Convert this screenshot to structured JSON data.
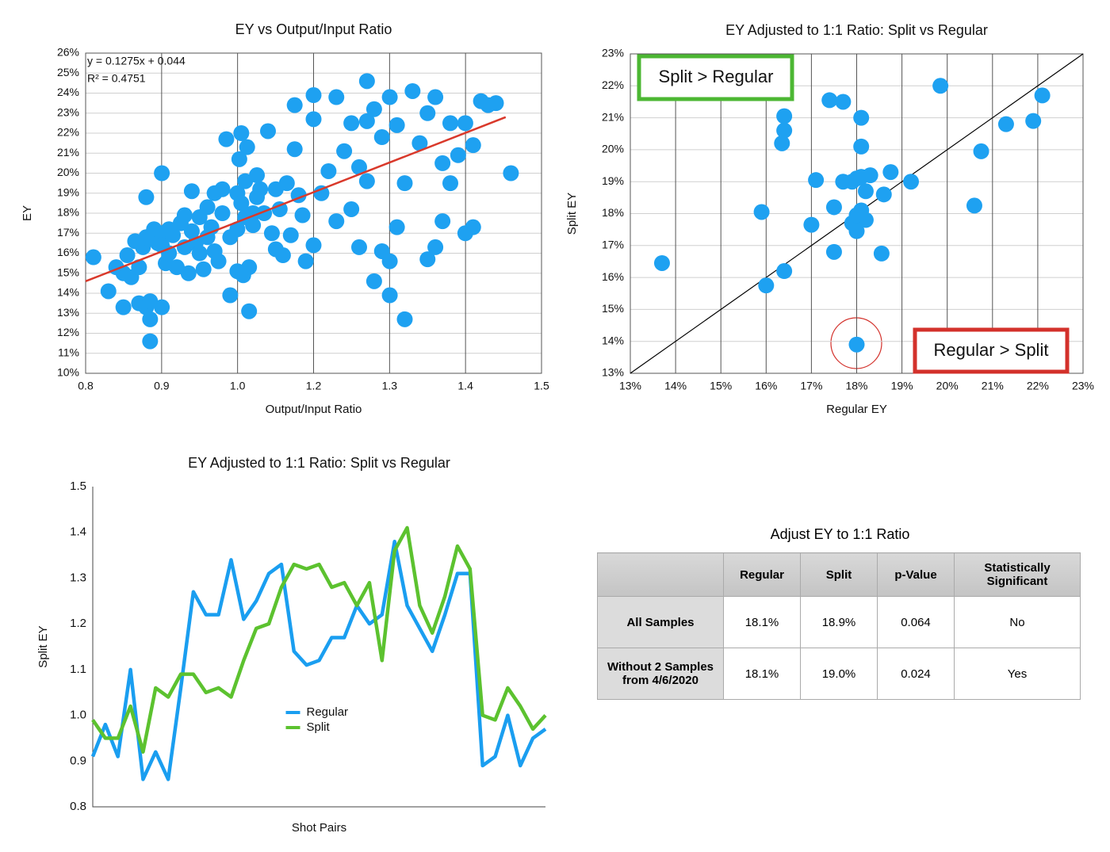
{
  "chart_data": [
    {
      "type": "scatter",
      "title": "EY vs Output/Input Ratio",
      "x_label": "Output/Input Ratio",
      "y_label": "EY",
      "xlim": [
        0.8,
        1.5
      ],
      "xticks": [
        0.8,
        {
          "value": 0.9167,
          "label": "0.9"
        },
        {
          "value": 1.0333,
          "label": "1.0"
        },
        {
          "value": 1.15,
          "label": "1.2"
        },
        {
          "value": 1.2667,
          "label": "1.3"
        },
        {
          "value": 1.3833,
          "label": "1.4"
        },
        1.5
      ],
      "ylim": [
        10,
        26
      ],
      "yticks": [
        {
          "value": 10,
          "label": "10%"
        },
        {
          "value": 11,
          "label": "11%"
        },
        {
          "value": 12,
          "label": "12%"
        },
        {
          "value": 13,
          "label": "13%"
        },
        {
          "value": 14,
          "label": "14%"
        },
        {
          "value": 15,
          "label": "15%"
        },
        {
          "value": 16,
          "label": "16%"
        },
        {
          "value": 17,
          "label": "17%"
        },
        {
          "value": 18,
          "label": "18%"
        },
        {
          "value": 19,
          "label": "19%"
        },
        {
          "value": 20,
          "label": "20%"
        },
        {
          "value": 21,
          "label": "21%"
        },
        {
          "value": 22,
          "label": "22%"
        },
        {
          "value": 23,
          "label": "23%"
        },
        {
          "value": 24,
          "label": "24%"
        },
        {
          "value": 25,
          "label": "25%"
        },
        {
          "value": 26,
          "label": "26%"
        }
      ],
      "grid": true,
      "color": "#1ea1f1",
      "x": [
        0.812,
        0.835,
        0.847,
        0.858,
        0.858,
        0.864,
        0.87,
        0.876,
        0.882,
        0.882,
        0.888,
        0.893,
        0.893,
        0.893,
        0.899,
        0.899,
        0.899,
        0.905,
        0.911,
        0.917,
        0.917,
        0.917,
        0.917,
        0.923,
        0.928,
        0.928,
        0.934,
        0.94,
        0.946,
        0.952,
        0.952,
        0.958,
        0.963,
        0.963,
        0.969,
        0.975,
        0.975,
        0.981,
        0.987,
        0.987,
        0.993,
        0.998,
        0.998,
        1.004,
        1.01,
        1.01,
        1.016,
        1.022,
        1.022,
        1.033,
        1.033,
        1.033,
        1.036,
        1.039,
        1.039,
        1.042,
        1.045,
        1.045,
        1.048,
        1.051,
        1.051,
        1.057,
        1.057,
        1.063,
        1.063,
        1.068,
        1.074,
        1.08,
        1.086,
        1.092,
        1.092,
        1.098,
        1.103,
        1.109,
        1.115,
        1.121,
        1.121,
        1.127,
        1.133,
        1.138,
        1.15,
        1.15,
        1.15,
        1.162,
        1.173,
        1.185,
        1.185,
        1.197,
        1.208,
        1.208,
        1.22,
        1.22,
        1.232,
        1.232,
        1.232,
        1.243,
        1.243,
        1.255,
        1.255,
        1.267,
        1.267,
        1.267,
        1.278,
        1.278,
        1.29,
        1.29,
        1.302,
        1.313,
        1.325,
        1.325,
        1.337,
        1.337,
        1.348,
        1.348,
        1.36,
        1.36,
        1.372,
        1.383,
        1.383,
        1.395,
        1.395,
        1.407,
        1.418,
        1.43,
        1.453
      ],
      "values": [
        15.8,
        14.1,
        15.3,
        15.0,
        13.3,
        15.9,
        14.8,
        16.6,
        15.3,
        13.5,
        16.3,
        16.8,
        13.3,
        18.8,
        12.7,
        11.6,
        13.6,
        17.2,
        16.5,
        17.0,
        16.4,
        13.3,
        20.0,
        15.5,
        17.2,
        16.0,
        16.9,
        15.3,
        17.5,
        17.9,
        16.3,
        15.0,
        17.1,
        19.1,
        16.5,
        16.0,
        17.8,
        15.2,
        18.3,
        16.8,
        17.3,
        19.0,
        16.1,
        15.6,
        19.2,
        18.0,
        21.7,
        13.9,
        16.8,
        17.2,
        15.1,
        19.0,
        20.7,
        22.0,
        18.5,
        14.9,
        17.8,
        19.6,
        21.3,
        15.3,
        13.1,
        18.0,
        17.4,
        19.9,
        18.8,
        19.2,
        18.0,
        22.1,
        17.0,
        16.2,
        19.2,
        18.2,
        15.9,
        19.5,
        16.9,
        21.2,
        23.4,
        18.9,
        17.9,
        15.6,
        16.4,
        22.7,
        23.9,
        19.0,
        20.1,
        17.6,
        23.8,
        21.1,
        22.5,
        18.2,
        20.3,
        16.3,
        24.6,
        22.6,
        19.6,
        14.6,
        23.2,
        21.8,
        16.1,
        13.9,
        15.6,
        23.8,
        17.3,
        22.4,
        12.7,
        19.5,
        24.1,
        21.5,
        15.7,
        23.0,
        16.3,
        23.8,
        20.5,
        17.6,
        19.5,
        22.5,
        20.9,
        17.0,
        22.5,
        17.3,
        21.4,
        23.6,
        23.4,
        23.5,
        20.0
      ],
      "trendline": {
        "color": "#d9392b",
        "x": [
          0.8,
          1.445
        ],
        "y": [
          14.6,
          22.8
        ]
      },
      "annotations": [
        "y = 0.1275x + 0.044",
        "R² = 0.4751"
      ]
    },
    {
      "type": "scatter",
      "title": "EY Adjusted to 1:1 Ratio: Split vs Regular",
      "x_label": "Regular EY",
      "y_label": "Split EY",
      "xlim": [
        13,
        23
      ],
      "xticks": [
        {
          "value": 13,
          "label": "13%"
        },
        {
          "value": 14,
          "label": "14%"
        },
        {
          "value": 15,
          "label": "15%"
        },
        {
          "value": 16,
          "label": "16%"
        },
        {
          "value": 17,
          "label": "17%"
        },
        {
          "value": 18,
          "label": "18%"
        },
        {
          "value": 19,
          "label": "19%"
        },
        {
          "value": 20,
          "label": "20%"
        },
        {
          "value": 21,
          "label": "21%"
        },
        {
          "value": 22,
          "label": "22%"
        },
        {
          "value": 23,
          "label": "23%"
        }
      ],
      "ylim": [
        13,
        23
      ],
      "yticks": [
        {
          "value": 13,
          "label": "13%"
        },
        {
          "value": 14,
          "label": "14%"
        },
        {
          "value": 15,
          "label": "15%"
        },
        {
          "value": 16,
          "label": "16%"
        },
        {
          "value": 17,
          "label": "17%"
        },
        {
          "value": 18,
          "label": "18%"
        },
        {
          "value": 19,
          "label": "19%"
        },
        {
          "value": 20,
          "label": "20%"
        },
        {
          "value": 21,
          "label": "21%"
        },
        {
          "value": 22,
          "label": "22%"
        },
        {
          "value": 23,
          "label": "23%"
        }
      ],
      "grid": true,
      "color": "#1ea1f1",
      "x": [
        13.7,
        15.9,
        16.0,
        16.4,
        16.4,
        16.35,
        16.4,
        17.0,
        17.1,
        17.4,
        17.7,
        17.5,
        17.5,
        17.7,
        17.9,
        18.0,
        18.1,
        18.1,
        18.1,
        18.3,
        18.2,
        18.1,
        18.2,
        17.9,
        18.0,
        18.0,
        18.55,
        18.6,
        18.75,
        19.2,
        19.85,
        20.6,
        20.75,
        21.3,
        21.9,
        22.1,
        18.0
      ],
      "values": [
        16.45,
        18.05,
        15.75,
        21.05,
        20.6,
        20.2,
        16.2,
        17.65,
        19.05,
        21.55,
        21.5,
        16.8,
        18.2,
        19.0,
        19.0,
        19.1,
        21.0,
        20.1,
        19.15,
        19.2,
        18.7,
        18.1,
        17.8,
        17.7,
        17.95,
        17.45,
        16.75,
        18.6,
        19.3,
        19.0,
        22.0,
        18.25,
        19.95,
        20.8,
        20.9,
        21.7,
        13.9
      ],
      "reference_line": {
        "color": "#000000",
        "x": [
          13,
          23
        ],
        "y": [
          13,
          23
        ]
      },
      "annotations": [
        {
          "text": "Split > Regular",
          "color": "#4cb733"
        },
        {
          "text": "Regular > Split",
          "color": "#d3312b"
        }
      ]
    },
    {
      "type": "line",
      "title": "EY Adjusted to 1:1 Ratio: Split vs Regular",
      "x_label": "Shot Pairs",
      "y_label": "Split EY",
      "ylim": [
        0.8,
        1.5
      ],
      "yticks": [
        0.8,
        0.9,
        {
          "value": 1,
          "label": "1.0"
        },
        1.1,
        1.2,
        1.3,
        1.4,
        1.5
      ],
      "grid": false,
      "legend": "center",
      "categories": [
        null,
        null,
        null,
        null,
        null,
        null,
        null,
        null,
        null,
        null,
        null,
        null,
        null,
        null,
        null,
        null,
        null,
        null,
        null,
        null,
        null,
        null,
        null,
        null,
        null,
        null,
        null,
        null,
        null,
        null,
        null,
        null,
        null,
        null,
        null,
        null,
        null
      ],
      "series": [
        {
          "name": "Regular",
          "color": "#1a9ef0",
          "values": [
            0.91,
            0.98,
            0.91,
            1.1,
            0.86,
            0.92,
            0.86,
            1.06,
            1.27,
            1.22,
            1.22,
            1.34,
            1.21,
            1.25,
            1.31,
            1.33,
            1.14,
            1.11,
            1.12,
            1.17,
            1.17,
            1.24,
            1.2,
            1.22,
            1.38,
            1.24,
            1.19,
            1.14,
            1.22,
            1.31,
            1.31,
            0.89,
            0.91,
            1.0,
            0.89,
            0.95,
            0.97
          ]
        },
        {
          "name": "Split",
          "color": "#5cc22f",
          "values": [
            0.99,
            0.95,
            0.95,
            1.02,
            0.92,
            1.06,
            1.04,
            1.09,
            1.09,
            1.05,
            1.06,
            1.04,
            1.12,
            1.19,
            1.2,
            1.28,
            1.33,
            1.32,
            1.33,
            1.28,
            1.29,
            1.24,
            1.29,
            1.12,
            1.36,
            1.41,
            1.24,
            1.18,
            1.26,
            1.37,
            1.32,
            1.0,
            0.99,
            1.06,
            1.02,
            0.97,
            1.0
          ]
        }
      ]
    }
  ],
  "table": {
    "title": "Adjust EY to 1:1 Ratio",
    "columns": [
      "Regular",
      "Split",
      "p-Value",
      "Statistically Significant"
    ],
    "rows": [
      {
        "label": "All Samples",
        "cells": [
          "18.1%",
          "18.9%",
          "0.064",
          "No"
        ]
      },
      {
        "label": "Without 2 Samples from 4/6/2020",
        "cells": [
          "18.1%",
          "19.0%",
          "0.024",
          "Yes"
        ]
      }
    ]
  }
}
